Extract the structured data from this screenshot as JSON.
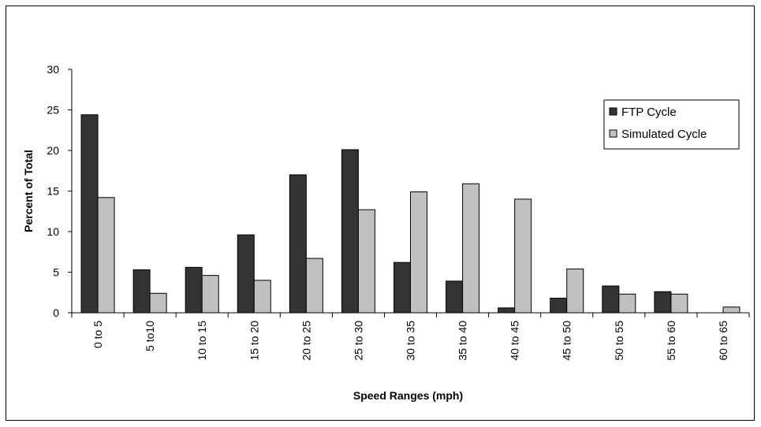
{
  "chart_data": {
    "type": "bar",
    "title": "",
    "xlabel": "Speed Ranges (mph)",
    "ylabel": "Percent of Total",
    "ylim": [
      0,
      30
    ],
    "yticks": [
      0,
      5,
      10,
      15,
      20,
      25,
      30
    ],
    "grid": false,
    "legend_position": "top-right",
    "categories": [
      "0 to 5",
      "5 to10",
      "10 to 15",
      "15 to 20",
      "20 to 25",
      "25 to 30",
      "30 to 35",
      "35 to 40",
      "40 to 45",
      "45 to 50",
      "50 to 55",
      "55 to 60",
      "60 to 65"
    ],
    "series": [
      {
        "name": "FTP Cycle",
        "color": "#333333",
        "values": [
          24.4,
          5.3,
          5.6,
          9.6,
          17.0,
          20.1,
          6.2,
          3.9,
          0.6,
          1.8,
          3.3,
          2.6,
          0.0
        ]
      },
      {
        "name": "Simulated Cycle",
        "color": "#c0c0c0",
        "values": [
          14.2,
          2.4,
          4.6,
          4.0,
          6.7,
          12.7,
          14.9,
          15.9,
          14.0,
          5.4,
          2.3,
          2.3,
          0.7
        ]
      }
    ]
  }
}
